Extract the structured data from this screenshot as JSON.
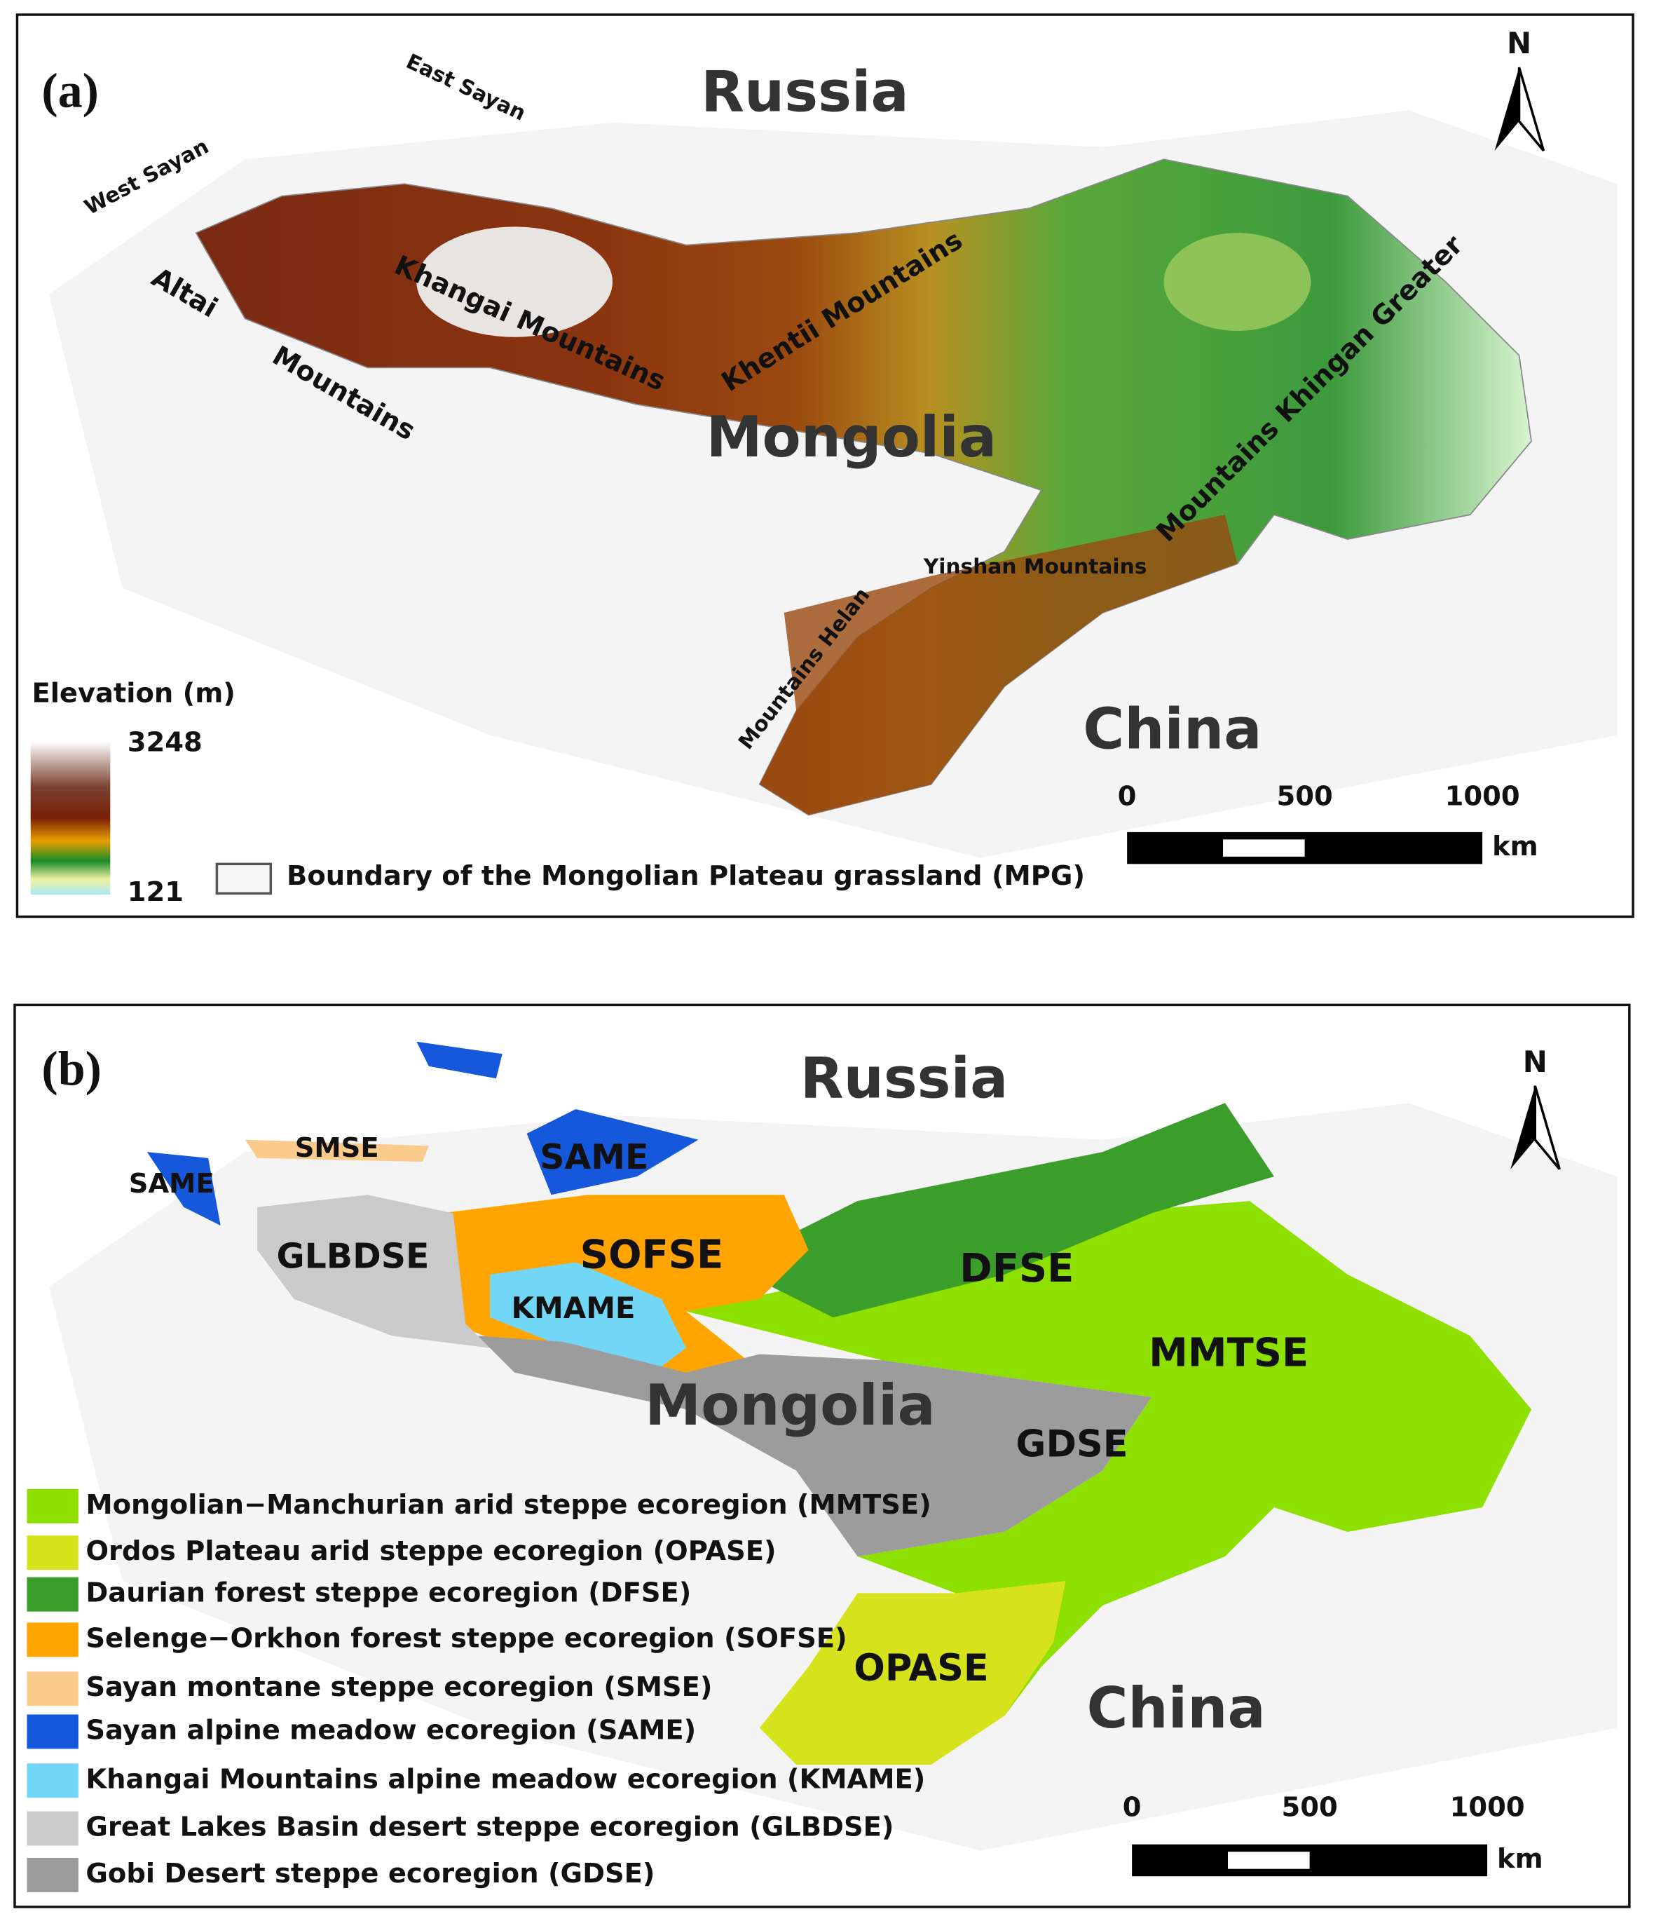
{
  "panels": [
    {
      "label": "(a)",
      "countries": [
        "Russia",
        "Mongolia",
        "China"
      ],
      "place_labels": [
        "West Sayan",
        "East Sayan",
        "Altai",
        "Mountains",
        "Khangai Mountains",
        "Khentii Mountains",
        "Mountains Khingan Greater",
        "Yinshan Mountains",
        "Mountains Helan"
      ],
      "legend": {
        "title": "Elevation (m)",
        "max": 3248,
        "min": 121,
        "boundary": "Boundary of the Mongolian Plateau grassland (MPG)"
      },
      "scale_bar": {
        "ticks": [
          0,
          500,
          1000
        ],
        "unit": "km"
      },
      "north": "N"
    },
    {
      "label": "(b)",
      "countries": [
        "Russia",
        "Mongolia",
        "China"
      ],
      "region_labels": [
        "SMSE",
        "SAME",
        "SAME",
        "GLBDSE",
        "SOFSE",
        "KMAME",
        "DFSE",
        "MMTSE",
        "GDSE",
        "OPASE"
      ],
      "legend": [
        {
          "name": "Mongolian−Manchurian arid steppe ecoregion (MMTSE)",
          "color": "#8ee000"
        },
        {
          "name": "Ordos Plateau arid steppe ecoregion (OPASE)",
          "color": "#d6e21c"
        },
        {
          "name": "Daurian forest steppe ecoregion (DFSE)",
          "color": "#3c9e2a"
        },
        {
          "name": "Selenge−Orkhon forest steppe ecoregion (SOFSE)",
          "color": "#ffa400"
        },
        {
          "name": "Sayan montane steppe ecoregion (SMSE)",
          "color": "#fbcb8c"
        },
        {
          "name": "Sayan alpine meadow ecoregion (SAME)",
          "color": "#1658dc"
        },
        {
          "name": "Khangai Mountains alpine meadow ecoregion (KMAME)",
          "color": "#72d6f6"
        },
        {
          "name": "Great Lakes Basin desert steppe ecoregion (GLBDSE)",
          "color": "#cacaca"
        },
        {
          "name": "Gobi Desert steppe ecoregion (GDSE)",
          "color": "#9c9c9c"
        }
      ],
      "scale_bar": {
        "ticks": [
          0,
          500,
          1000
        ],
        "unit": "km"
      },
      "north": "N"
    }
  ]
}
